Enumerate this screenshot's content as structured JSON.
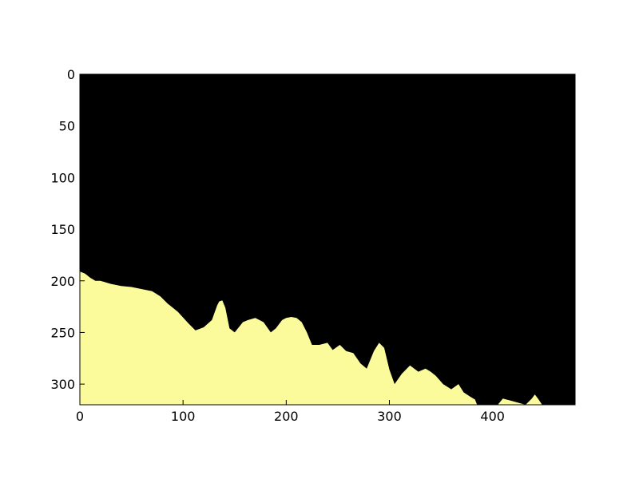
{
  "chart_data": {
    "type": "heatmap",
    "title": "",
    "xlabel": "",
    "ylabel": "",
    "xlim": [
      0,
      480
    ],
    "ylim": [
      320,
      0
    ],
    "y_axis_inverted": true,
    "x_ticks": [
      0,
      100,
      200,
      300,
      400
    ],
    "y_ticks": [
      0,
      50,
      100,
      150,
      200,
      250,
      300
    ],
    "grid": false,
    "legend": "none",
    "colors": {
      "background": "#000000",
      "mask": "#fbfb9b",
      "frame": "#000000"
    },
    "mask_boundary": {
      "description_of_values": "row (y, image pixels) where the foreground mask begins, for each column x (image pixels); foreground fills from this row to the bottom edge",
      "x": [
        0,
        5,
        10,
        15,
        20,
        30,
        40,
        50,
        60,
        70,
        78,
        85,
        95,
        105,
        112,
        120,
        128,
        133,
        135,
        138,
        141,
        145,
        150,
        158,
        163,
        170,
        178,
        185,
        190,
        196,
        200,
        205,
        210,
        215,
        220,
        225,
        232,
        240,
        245,
        252,
        258,
        265,
        272,
        278,
        285,
        290,
        295,
        300,
        305,
        312,
        320,
        328,
        335,
        340,
        345,
        352,
        360,
        367,
        372,
        378,
        383,
        385,
        405,
        410,
        432,
        438,
        441,
        444,
        448,
        480
      ],
      "y": [
        191,
        193,
        197,
        200,
        200,
        203,
        205,
        206,
        208,
        210,
        215,
        222,
        230,
        241,
        248,
        245,
        238,
        224,
        220,
        219,
        226,
        246,
        250,
        240,
        238,
        236,
        240,
        250,
        246,
        238,
        236,
        235,
        236,
        240,
        250,
        262,
        262,
        260,
        267,
        262,
        268,
        270,
        280,
        285,
        268,
        260,
        265,
        286,
        300,
        290,
        282,
        288,
        285,
        288,
        292,
        300,
        305,
        300,
        308,
        312,
        315,
        320,
        320,
        314,
        320,
        314,
        310,
        314,
        320,
        320
      ]
    }
  }
}
